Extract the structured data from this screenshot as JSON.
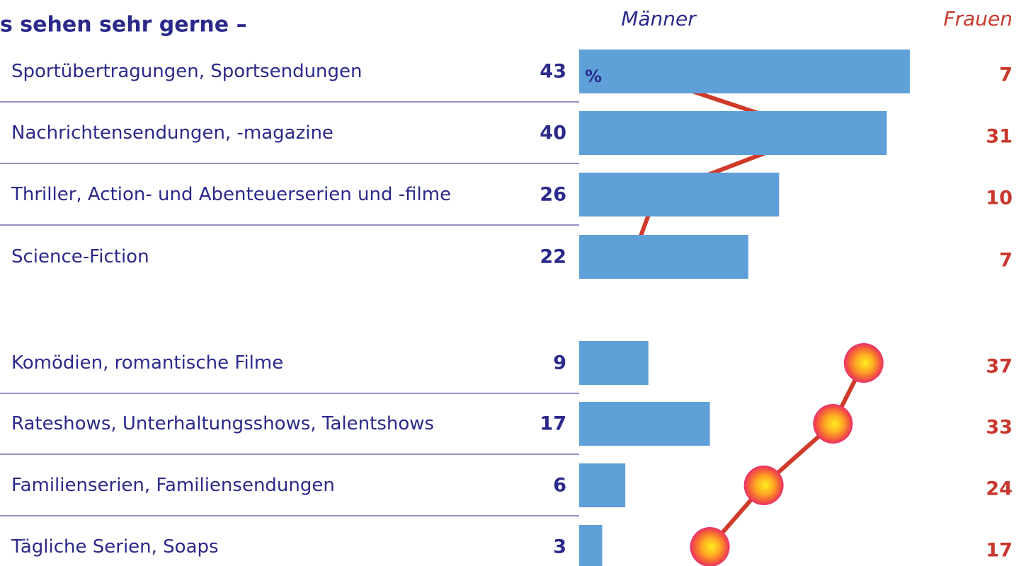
{
  "chart_data": {
    "type": "bar",
    "title": "s sehen sehr gerne –",
    "unit": "%",
    "categories": [
      "Sportübertragungen, Sportsendungen",
      "Nachrichtensendungen, -magazine",
      "Thriller, Action- und Abenteuerserien und -filme",
      "Science-Fiction",
      "Komödien, romantische Filme",
      "Rateshows, Unterhaltungsshows, Talentshows",
      "Familienserien, Familiensendungen",
      "Tägliche Serien, Soaps"
    ],
    "series": [
      {
        "name": "Männer",
        "color": "#5fa0d8",
        "label_color": "#2b2a8a",
        "values": [
          43,
          40,
          26,
          22,
          9,
          17,
          6,
          3
        ]
      },
      {
        "name": "Frauen",
        "type": "line",
        "color": "#d03a2a",
        "label_color": "#c8372d",
        "values": [
          7,
          31,
          10,
          7,
          37,
          33,
          24,
          17
        ]
      }
    ]
  }
}
